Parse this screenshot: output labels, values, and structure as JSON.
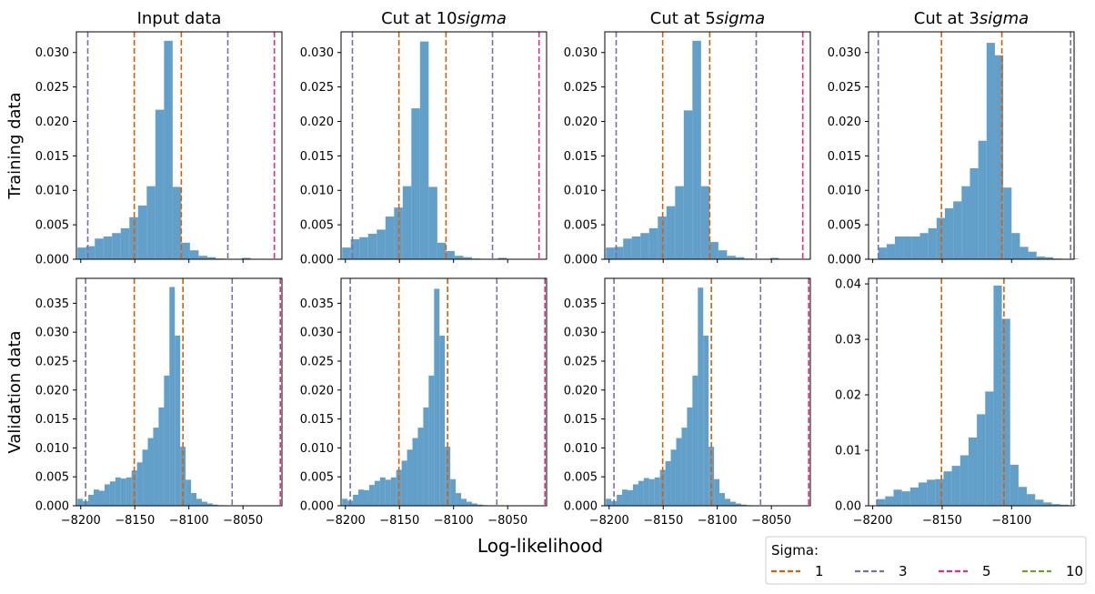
{
  "figure": {
    "xlabel": "Log-likelihood",
    "row_labels": [
      "Training data",
      "Validation data"
    ],
    "legend": {
      "title": "Sigma:",
      "placement": "bottom-right",
      "entries": [
        {
          "label": "1",
          "color": "#d95f02"
        },
        {
          "label": "3",
          "color": "#7570b3"
        },
        {
          "label": "5",
          "color": "#e7298a"
        },
        {
          "label": "10",
          "color": "#66a61e"
        }
      ]
    }
  },
  "chart_data": [
    {
      "type": "bar",
      "row": "Training data",
      "title": "Input data",
      "title_italic": "",
      "xlim": [
        -8204,
        -8014
      ],
      "ylim": [
        0,
        0.033
      ],
      "xticks": [
        -8200,
        -8150,
        -8100,
        -8050
      ],
      "yticks": [
        "0.000",
        "0.005",
        "0.010",
        "0.015",
        "0.020",
        "0.025",
        "0.030"
      ],
      "ytick_values": [
        0,
        0.005,
        0.01,
        0.015,
        0.02,
        0.025,
        0.03
      ],
      "bins": [
        -8203,
        -8195,
        -8187,
        -8179,
        -8171,
        -8163,
        -8155,
        -8147,
        -8139,
        -8131,
        -8123,
        -8115,
        -8107,
        -8099,
        -8091,
        -8083,
        -8075,
        -8067,
        -8059,
        -8051,
        -8043,
        -8035,
        -8027,
        -8019
      ],
      "values": [
        0.0017,
        0.0019,
        0.003,
        0.0033,
        0.0038,
        0.0045,
        0.0061,
        0.0078,
        0.0106,
        0.0217,
        0.0317,
        0.0105,
        0.0024,
        0.0013,
        0.0005,
        0.0003,
        0.0001,
        0.0,
        0.0,
        0.0002,
        0.0,
        0.0,
        0.0,
        0.0
      ],
      "vlines": [
        {
          "x": -8150.5,
          "sigma": "1"
        },
        {
          "x": -8107,
          "sigma": "1"
        },
        {
          "x": -8193.5,
          "sigma": "3"
        },
        {
          "x": -8064,
          "sigma": "3"
        },
        {
          "x": -8021,
          "sigma": "5"
        }
      ],
      "show_xticklabels": false
    },
    {
      "type": "bar",
      "row": "Training data",
      "title": "Cut at 10",
      "title_italic": "sigma",
      "xlim": [
        -8204,
        -8014
      ],
      "ylim": [
        0,
        0.033
      ],
      "xticks": [
        -8200,
        -8150,
        -8100,
        -8050
      ],
      "yticks": [
        "0.000",
        "0.005",
        "0.010",
        "0.015",
        "0.020",
        "0.025",
        "0.030"
      ],
      "ytick_values": [
        0,
        0.005,
        0.01,
        0.015,
        0.02,
        0.025,
        0.03
      ],
      "bins": [
        -8203,
        -8195,
        -8187,
        -8179,
        -8171,
        -8163,
        -8155,
        -8147,
        -8139,
        -8131,
        -8123,
        -8115,
        -8107,
        -8099,
        -8091,
        -8083,
        -8075,
        -8067,
        -8059,
        -8051,
        -8043,
        -8035,
        -8027,
        -8019
      ],
      "values": [
        0.0017,
        0.0029,
        0.0032,
        0.0037,
        0.0043,
        0.0062,
        0.0075,
        0.0106,
        0.0219,
        0.0316,
        0.0105,
        0.0024,
        0.0012,
        0.0005,
        0.0003,
        0.0001,
        0.0,
        0.0,
        0.0002,
        0.0,
        0.0,
        0.0,
        0.0,
        0.0
      ],
      "vlines": [
        {
          "x": -8150.5,
          "sigma": "1"
        },
        {
          "x": -8107,
          "sigma": "1"
        },
        {
          "x": -8193.5,
          "sigma": "3"
        },
        {
          "x": -8064,
          "sigma": "3"
        },
        {
          "x": -8021,
          "sigma": "5"
        }
      ],
      "show_xticklabels": false
    },
    {
      "type": "bar",
      "row": "Training data",
      "title": "Cut at 5",
      "title_italic": "sigma",
      "xlim": [
        -8204,
        -8014
      ],
      "ylim": [
        0,
        0.033
      ],
      "xticks": [
        -8200,
        -8150,
        -8100,
        -8050
      ],
      "yticks": [
        "0.000",
        "0.005",
        "0.010",
        "0.015",
        "0.020",
        "0.025",
        "0.030"
      ],
      "ytick_values": [
        0,
        0.005,
        0.01,
        0.015,
        0.02,
        0.025,
        0.03
      ],
      "bins": [
        -8203,
        -8195,
        -8187,
        -8179,
        -8171,
        -8163,
        -8155,
        -8147,
        -8139,
        -8131,
        -8123,
        -8115,
        -8107,
        -8099,
        -8091,
        -8083,
        -8075,
        -8067,
        -8059,
        -8051,
        -8043,
        -8035,
        -8027,
        -8019
      ],
      "values": [
        0.0017,
        0.0018,
        0.003,
        0.0033,
        0.0038,
        0.0045,
        0.0062,
        0.0077,
        0.0106,
        0.0216,
        0.0317,
        0.0106,
        0.0025,
        0.0013,
        0.0005,
        0.0003,
        0.0001,
        0.0,
        0.0,
        0.0002,
        0.0,
        0.0,
        0.0,
        0.0
      ],
      "vlines": [
        {
          "x": -8150.5,
          "sigma": "1"
        },
        {
          "x": -8107,
          "sigma": "1"
        },
        {
          "x": -8193.5,
          "sigma": "3"
        },
        {
          "x": -8064,
          "sigma": "3"
        },
        {
          "x": -8021,
          "sigma": "5"
        }
      ],
      "show_xticklabels": false
    },
    {
      "type": "bar",
      "row": "Training data",
      "title": "Cut at 3",
      "title_italic": "sigma",
      "xlim": [
        -8203,
        -8055
      ],
      "ylim": [
        0,
        0.033
      ],
      "xticks": [
        -8200,
        -8150,
        -8100
      ],
      "yticks": [
        "0.000",
        "0.005",
        "0.010",
        "0.015",
        "0.020",
        "0.025",
        "0.030"
      ],
      "ytick_values": [
        0,
        0.005,
        0.01,
        0.015,
        0.02,
        0.025,
        0.03
      ],
      "bins": [
        -8196,
        -8190,
        -8184,
        -8178,
        -8172,
        -8166,
        -8160,
        -8154,
        -8148,
        -8142,
        -8136,
        -8130,
        -8124,
        -8118,
        -8112,
        -8106,
        -8100,
        -8094,
        -8088,
        -8082,
        -8076,
        -8070,
        -8064,
        -8058
      ],
      "values": [
        0.0017,
        0.0022,
        0.0033,
        0.0033,
        0.0033,
        0.0038,
        0.0045,
        0.006,
        0.0074,
        0.0084,
        0.0106,
        0.0132,
        0.0172,
        0.0314,
        0.0296,
        0.0104,
        0.0038,
        0.0018,
        0.0011,
        0.0004,
        0.0003,
        0.0001,
        0.0,
        0.0001
      ],
      "vlines": [
        {
          "x": -8150.5,
          "sigma": "1"
        },
        {
          "x": -8107,
          "sigma": "1"
        },
        {
          "x": -8196,
          "sigma": "3"
        },
        {
          "x": -8057.5,
          "sigma": "3"
        }
      ],
      "show_xticklabels": false
    },
    {
      "type": "bar",
      "row": "Validation data",
      "title": "",
      "title_italic": "",
      "xlim": [
        -8204,
        -8014
      ],
      "ylim": [
        0,
        0.0393
      ],
      "xticks": [
        -8200,
        -8150,
        -8100,
        -8050
      ],
      "yticks": [
        "0.000",
        "0.005",
        "0.010",
        "0.015",
        "0.020",
        "0.025",
        "0.030",
        "0.035"
      ],
      "ytick_values": [
        0,
        0.005,
        0.01,
        0.015,
        0.02,
        0.025,
        0.03,
        0.035
      ],
      "bins": [
        -8203,
        -8198,
        -8193,
        -8188,
        -8183,
        -8178,
        -8173,
        -8168,
        -8163,
        -8158,
        -8153,
        -8148,
        -8143,
        -8138,
        -8133,
        -8128,
        -8123,
        -8118,
        -8113,
        -8108,
        -8103,
        -8098,
        -8093,
        -8088,
        -8083,
        -8078,
        -8073,
        -8068,
        -8063
      ],
      "values": [
        0.0012,
        0.0008,
        0.0019,
        0.0028,
        0.0026,
        0.0037,
        0.0042,
        0.0049,
        0.0047,
        0.0049,
        0.0061,
        0.0075,
        0.0097,
        0.0117,
        0.0135,
        0.017,
        0.0225,
        0.0378,
        0.0294,
        0.0102,
        0.0045,
        0.0022,
        0.0012,
        0.0007,
        0.0004,
        0.0002,
        0.0001,
        0.0,
        0.0
      ],
      "vlines": [
        {
          "x": -8150.5,
          "sigma": "1"
        },
        {
          "x": -8105.5,
          "sigma": "1"
        },
        {
          "x": -8195.5,
          "sigma": "3"
        },
        {
          "x": -8060,
          "sigma": "3"
        },
        {
          "x": -8015.5,
          "sigma": "5"
        }
      ],
      "show_xticklabels": true
    },
    {
      "type": "bar",
      "row": "Validation data",
      "title": "",
      "title_italic": "",
      "xlim": [
        -8204,
        -8014
      ],
      "ylim": [
        0,
        0.0393
      ],
      "xticks": [
        -8200,
        -8150,
        -8100,
        -8050
      ],
      "yticks": [
        "0.000",
        "0.005",
        "0.010",
        "0.015",
        "0.020",
        "0.025",
        "0.030",
        "0.035"
      ],
      "ytick_values": [
        0,
        0.005,
        0.01,
        0.015,
        0.02,
        0.025,
        0.03,
        0.035
      ],
      "bins": [
        -8203,
        -8198,
        -8193,
        -8188,
        -8183,
        -8178,
        -8173,
        -8168,
        -8163,
        -8158,
        -8153,
        -8148,
        -8143,
        -8138,
        -8133,
        -8128,
        -8123,
        -8118,
        -8113,
        -8108,
        -8103,
        -8098,
        -8093,
        -8088,
        -8083,
        -8078,
        -8073,
        -8068,
        -8063
      ],
      "values": [
        0.0012,
        0.0009,
        0.0019,
        0.0028,
        0.0027,
        0.0036,
        0.0043,
        0.0049,
        0.0045,
        0.0049,
        0.0062,
        0.0078,
        0.0097,
        0.0117,
        0.0135,
        0.017,
        0.0225,
        0.0375,
        0.0294,
        0.0102,
        0.0046,
        0.0022,
        0.0012,
        0.0007,
        0.0004,
        0.0002,
        0.0001,
        0.0,
        0.0
      ],
      "vlines": [
        {
          "x": -8150.5,
          "sigma": "1"
        },
        {
          "x": -8105.5,
          "sigma": "1"
        },
        {
          "x": -8195.5,
          "sigma": "3"
        },
        {
          "x": -8060,
          "sigma": "3"
        },
        {
          "x": -8015.5,
          "sigma": "5"
        }
      ],
      "show_xticklabels": true
    },
    {
      "type": "bar",
      "row": "Validation data",
      "title": "",
      "title_italic": "",
      "xlim": [
        -8204,
        -8014
      ],
      "ylim": [
        0,
        0.0393
      ],
      "xticks": [
        -8200,
        -8150,
        -8100,
        -8050
      ],
      "yticks": [
        "0.000",
        "0.005",
        "0.010",
        "0.015",
        "0.020",
        "0.025",
        "0.030",
        "0.035"
      ],
      "ytick_values": [
        0,
        0.005,
        0.01,
        0.015,
        0.02,
        0.025,
        0.03,
        0.035
      ],
      "bins": [
        -8203,
        -8198,
        -8193,
        -8188,
        -8183,
        -8178,
        -8173,
        -8168,
        -8163,
        -8158,
        -8153,
        -8148,
        -8143,
        -8138,
        -8133,
        -8128,
        -8123,
        -8118,
        -8113,
        -8108,
        -8103,
        -8098,
        -8093,
        -8088,
        -8083,
        -8078,
        -8073,
        -8068,
        -8063
      ],
      "values": [
        0.0012,
        0.0008,
        0.0019,
        0.0028,
        0.0027,
        0.0037,
        0.0043,
        0.0048,
        0.0046,
        0.0049,
        0.0062,
        0.0077,
        0.0097,
        0.0117,
        0.0135,
        0.017,
        0.0225,
        0.0377,
        0.0294,
        0.0102,
        0.0046,
        0.0022,
        0.0012,
        0.0007,
        0.0004,
        0.0002,
        0.0001,
        0.0,
        0.0
      ],
      "vlines": [
        {
          "x": -8150.5,
          "sigma": "1"
        },
        {
          "x": -8105.5,
          "sigma": "1"
        },
        {
          "x": -8195.5,
          "sigma": "3"
        },
        {
          "x": -8060,
          "sigma": "3"
        },
        {
          "x": -8015.5,
          "sigma": "5"
        }
      ],
      "show_xticklabels": true
    },
    {
      "type": "bar",
      "row": "Validation data",
      "title": "",
      "title_italic": "",
      "xlim": [
        -8203,
        -8055
      ],
      "ylim": [
        0,
        0.041
      ],
      "xticks": [
        -8200,
        -8150,
        -8100
      ],
      "yticks": [
        "0.00",
        "0.01",
        "0.02",
        "0.03",
        "0.04"
      ],
      "ytick_values": [
        0,
        0.01,
        0.02,
        0.03,
        0.04
      ],
      "bins": [
        -8197,
        -8191,
        -8185,
        -8179,
        -8173,
        -8167,
        -8161,
        -8155,
        -8149,
        -8143,
        -8137,
        -8131,
        -8125,
        -8119,
        -8113,
        -8107,
        -8101,
        -8095,
        -8089,
        -8083,
        -8077,
        -8071,
        -8065,
        -8059
      ],
      "values": [
        0.0012,
        0.0017,
        0.0029,
        0.0026,
        0.0033,
        0.0042,
        0.0047,
        0.0048,
        0.0062,
        0.0072,
        0.0091,
        0.0123,
        0.0165,
        0.0206,
        0.0397,
        0.0337,
        0.0074,
        0.0034,
        0.0021,
        0.0011,
        0.0006,
        0.0003,
        0.0002,
        0.0001
      ],
      "vlines": [
        {
          "x": -8150.5,
          "sigma": "1"
        },
        {
          "x": -8105.5,
          "sigma": "1"
        },
        {
          "x": -8197,
          "sigma": "3"
        },
        {
          "x": -8057,
          "sigma": "3"
        }
      ],
      "show_xticklabels": true
    }
  ]
}
